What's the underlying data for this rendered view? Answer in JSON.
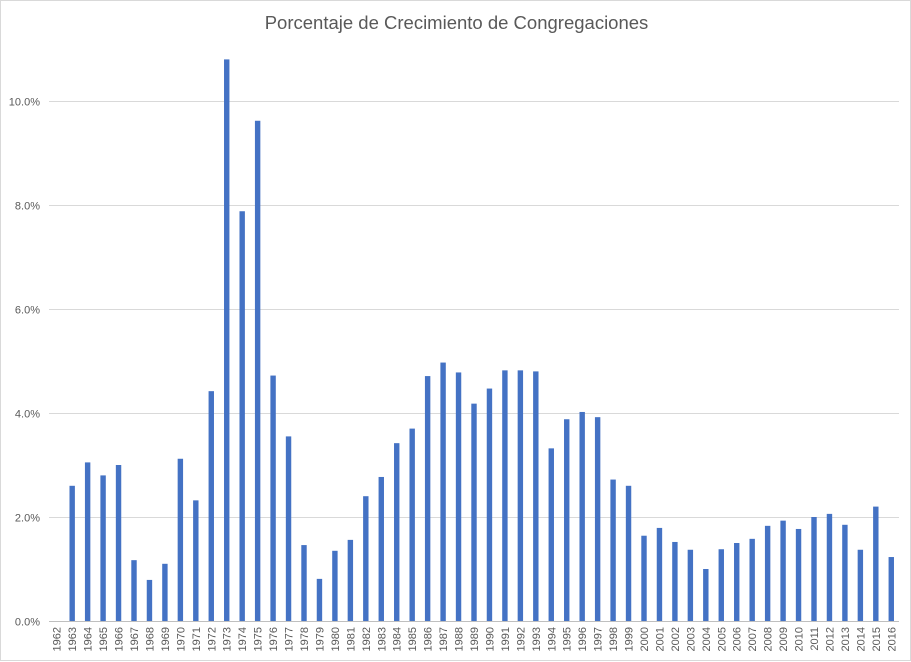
{
  "chart_data": {
    "type": "bar",
    "title": "Porcentaje de Crecimiento de Congregaciones",
    "xlabel": "",
    "ylabel": "",
    "ylim": [
      0,
      11
    ],
    "yticks": [
      "0.0%",
      "2.0%",
      "4.0%",
      "6.0%",
      "8.0%",
      "10.0%"
    ],
    "ytick_values": [
      0,
      2,
      4,
      6,
      8,
      10
    ],
    "grid": true,
    "bar_color": "#4472C4",
    "categories": [
      "1962",
      "1963",
      "1964",
      "1965",
      "1966",
      "1967",
      "1968",
      "1969",
      "1970",
      "1971",
      "1972",
      "1973",
      "1974",
      "1975",
      "1976",
      "1977",
      "1978",
      "1979",
      "1980",
      "1981",
      "1982",
      "1983",
      "1984",
      "1985",
      "1986",
      "1987",
      "1988",
      "1989",
      "1990",
      "1991",
      "1992",
      "1993",
      "1994",
      "1995",
      "1996",
      "1997",
      "1998",
      "1999",
      "2000",
      "2001",
      "2002",
      "2003",
      "2004",
      "2005",
      "2006",
      "2007",
      "2008",
      "2009",
      "2010",
      "2011",
      "2012",
      "2013",
      "2014",
      "2015",
      "2016"
    ],
    "values": [
      0,
      2.6,
      3.05,
      2.8,
      3.0,
      1.17,
      0.79,
      1.1,
      3.12,
      2.32,
      4.42,
      10.8,
      7.88,
      9.62,
      4.72,
      3.55,
      1.46,
      0.81,
      1.35,
      1.56,
      2.4,
      2.77,
      3.42,
      3.7,
      4.71,
      4.97,
      4.78,
      4.18,
      4.47,
      4.82,
      4.82,
      4.8,
      3.32,
      3.88,
      4.02,
      3.92,
      2.72,
      2.6,
      1.64,
      1.79,
      1.52,
      1.37,
      1.0,
      1.38,
      1.5,
      1.58,
      1.83,
      1.93,
      1.77,
      2.0,
      2.06,
      1.85,
      1.37,
      2.2,
      1.23
    ]
  }
}
